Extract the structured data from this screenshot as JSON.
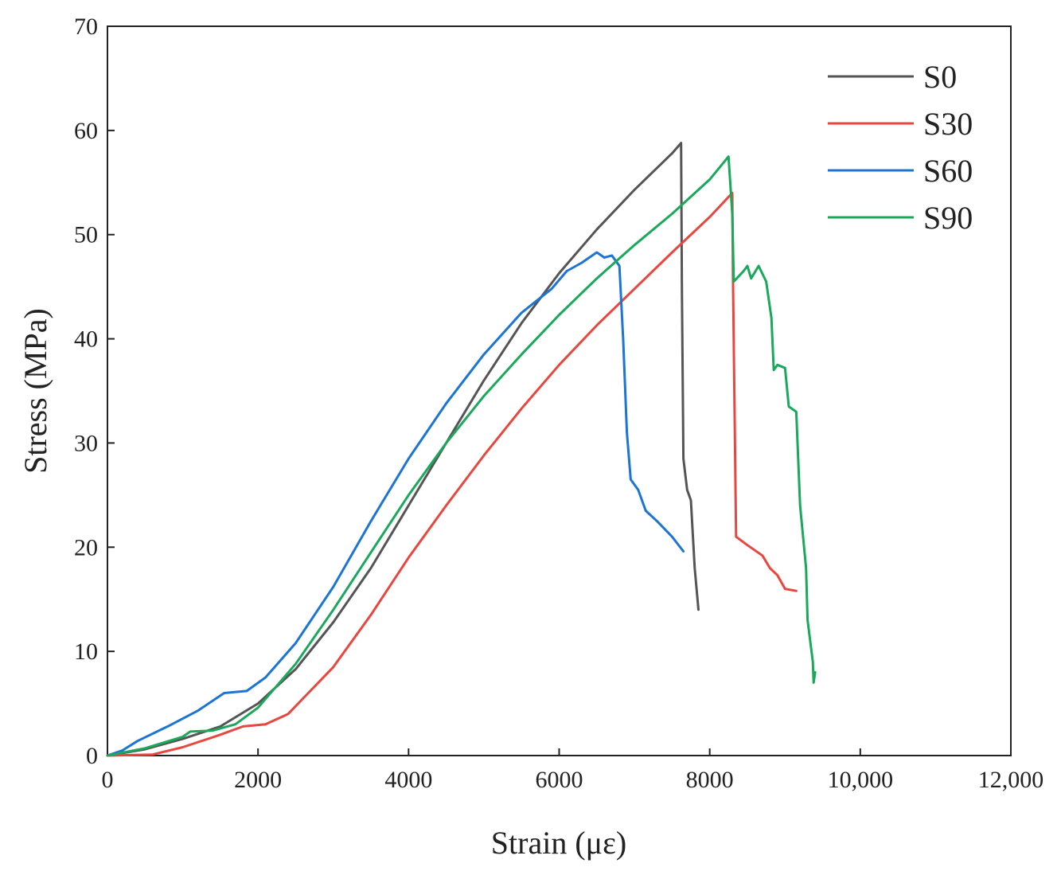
{
  "chart_data": {
    "type": "line",
    "title": "",
    "xlabel": "Strain (με)",
    "ylabel": "Stress (MPa)",
    "xlim": [
      0,
      12000
    ],
    "ylim": [
      0,
      70
    ],
    "xticks": [
      0,
      2000,
      4000,
      6000,
      8000,
      10000,
      12000
    ],
    "xtick_labels": [
      "0",
      "2000",
      "4000",
      "6000",
      "8000",
      "10,000",
      "12,000"
    ],
    "yticks": [
      0,
      10,
      20,
      30,
      40,
      50,
      60,
      70
    ],
    "ytick_labels": [
      "0",
      "10",
      "20",
      "30",
      "40",
      "50",
      "60",
      "70"
    ],
    "grid": false,
    "legend_position": "top-right",
    "series": [
      {
        "name": "S0",
        "color": "#555555",
        "points": [
          [
            0,
            0
          ],
          [
            500,
            0.6
          ],
          [
            1000,
            1.6
          ],
          [
            1500,
            2.8
          ],
          [
            2000,
            5.0
          ],
          [
            2500,
            8.3
          ],
          [
            3000,
            12.8
          ],
          [
            3500,
            18.0
          ],
          [
            4000,
            24.0
          ],
          [
            4500,
            30.0
          ],
          [
            5000,
            36.0
          ],
          [
            5500,
            41.5
          ],
          [
            6000,
            46.3
          ],
          [
            6500,
            50.5
          ],
          [
            7000,
            54.3
          ],
          [
            7500,
            57.8
          ],
          [
            7620,
            58.8
          ],
          [
            7630,
            45.0
          ],
          [
            7650,
            28.5
          ],
          [
            7700,
            25.5
          ],
          [
            7750,
            24.5
          ],
          [
            7800,
            18.0
          ],
          [
            7850,
            14.0
          ]
        ]
      },
      {
        "name": "S30",
        "color": "#e8473f",
        "points": [
          [
            0,
            0
          ],
          [
            600,
            0.1
          ],
          [
            1000,
            0.8
          ],
          [
            1500,
            2.0
          ],
          [
            1800,
            2.8
          ],
          [
            2100,
            3.0
          ],
          [
            2400,
            4.0
          ],
          [
            3000,
            8.5
          ],
          [
            3500,
            13.5
          ],
          [
            4000,
            19.0
          ],
          [
            4500,
            24.0
          ],
          [
            5000,
            28.8
          ],
          [
            5500,
            33.3
          ],
          [
            6000,
            37.5
          ],
          [
            6500,
            41.3
          ],
          [
            7000,
            44.8
          ],
          [
            7500,
            48.3
          ],
          [
            8000,
            51.7
          ],
          [
            8300,
            54.0
          ],
          [
            8310,
            45.0
          ],
          [
            8350,
            21.0
          ],
          [
            8500,
            20.2
          ],
          [
            8700,
            19.2
          ],
          [
            8800,
            18.0
          ],
          [
            8900,
            17.3
          ],
          [
            9000,
            16.0
          ],
          [
            9150,
            15.8
          ]
        ]
      },
      {
        "name": "S60",
        "color": "#1c74d4",
        "points": [
          [
            0,
            0
          ],
          [
            200,
            0.5
          ],
          [
            400,
            1.4
          ],
          [
            800,
            2.8
          ],
          [
            1200,
            4.3
          ],
          [
            1550,
            6.0
          ],
          [
            1850,
            6.2
          ],
          [
            2100,
            7.5
          ],
          [
            2500,
            10.8
          ],
          [
            3000,
            16.2
          ],
          [
            3500,
            22.5
          ],
          [
            4000,
            28.5
          ],
          [
            4500,
            33.8
          ],
          [
            5000,
            38.5
          ],
          [
            5500,
            42.5
          ],
          [
            5900,
            44.8
          ],
          [
            6100,
            46.5
          ],
          [
            6300,
            47.3
          ],
          [
            6500,
            48.3
          ],
          [
            6600,
            47.8
          ],
          [
            6700,
            48.0
          ],
          [
            6800,
            47.0
          ],
          [
            6850,
            40.0
          ],
          [
            6900,
            31.0
          ],
          [
            6950,
            26.5
          ],
          [
            7050,
            25.5
          ],
          [
            7150,
            23.5
          ],
          [
            7300,
            22.5
          ],
          [
            7500,
            21.0
          ],
          [
            7650,
            19.6
          ]
        ]
      },
      {
        "name": "S90",
        "color": "#1aa85b",
        "points": [
          [
            0,
            0
          ],
          [
            500,
            0.7
          ],
          [
            1000,
            1.8
          ],
          [
            1100,
            2.3
          ],
          [
            1400,
            2.4
          ],
          [
            1700,
            3.0
          ],
          [
            2000,
            4.6
          ],
          [
            2500,
            8.8
          ],
          [
            3000,
            14.0
          ],
          [
            3500,
            19.5
          ],
          [
            4000,
            25.0
          ],
          [
            4500,
            30.0
          ],
          [
            5000,
            34.5
          ],
          [
            5500,
            38.5
          ],
          [
            6000,
            42.3
          ],
          [
            6500,
            45.8
          ],
          [
            7000,
            49.0
          ],
          [
            7500,
            52.0
          ],
          [
            8000,
            55.3
          ],
          [
            8250,
            57.5
          ],
          [
            8300,
            52.0
          ],
          [
            8320,
            45.5
          ],
          [
            8450,
            46.5
          ],
          [
            8500,
            47.0
          ],
          [
            8550,
            45.8
          ],
          [
            8650,
            47.0
          ],
          [
            8750,
            45.5
          ],
          [
            8820,
            42.0
          ],
          [
            8850,
            37.0
          ],
          [
            8900,
            37.5
          ],
          [
            9000,
            37.2
          ],
          [
            9050,
            33.5
          ],
          [
            9150,
            33.0
          ],
          [
            9200,
            24.0
          ],
          [
            9280,
            18.0
          ],
          [
            9300,
            13.0
          ],
          [
            9370,
            9.0
          ],
          [
            9380,
            7.0
          ],
          [
            9400,
            8.0
          ]
        ]
      }
    ]
  }
}
